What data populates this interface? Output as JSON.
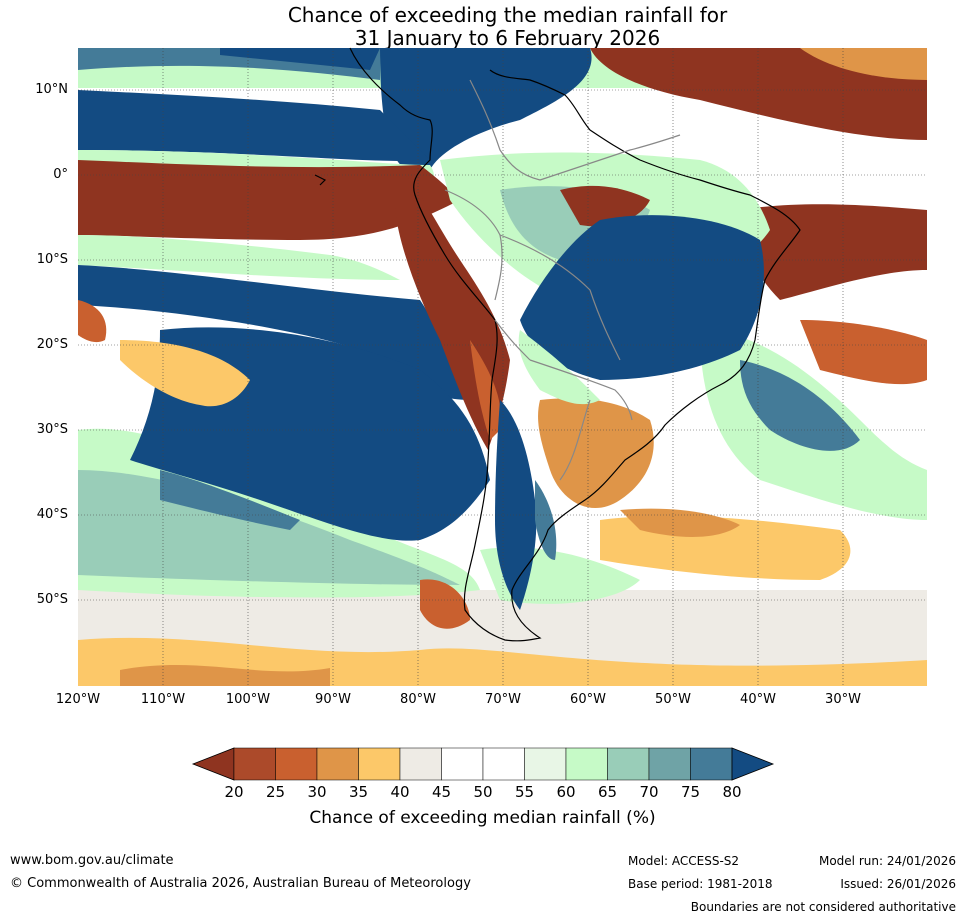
{
  "title": {
    "line1": "Chance of exceeding the median rainfall for",
    "line2": "31 January to 6 February 2026"
  },
  "map": {
    "lat_labels": [
      "10°N",
      "0°",
      "10°S",
      "20°S",
      "30°S",
      "40°S",
      "50°S"
    ],
    "lon_labels": [
      "120°W",
      "110°W",
      "100°W",
      "90°W",
      "80°W",
      "70°W",
      "60°W",
      "50°W",
      "40°W",
      "30°W"
    ],
    "colors": {
      "p20": "#8f3420",
      "p25": "#ac4a2a",
      "p30": "#c9602f",
      "p35": "#df9548",
      "p40": "#fcc869",
      "p45": "#eeebe5",
      "p50": "#ffffff",
      "p55": "#ffffff",
      "p60": "#e8f6e6",
      "p65": "#c6fac7",
      "p70": "#99cdb8",
      "p75": "#6fa3a6",
      "p80": "#447b98",
      "p85": "#134b82"
    }
  },
  "colorbar": {
    "ticks": [
      "20",
      "25",
      "30",
      "35",
      "40",
      "45",
      "50",
      "55",
      "60",
      "65",
      "70",
      "75",
      "80"
    ],
    "label": "Chance of exceeding median rainfall (%)"
  },
  "footer": {
    "website": "www.bom.gov.au/climate",
    "copyright": "© Commonwealth of Australia 2026, Australian Bureau of Meteorology",
    "model": "Model: ACCESS-S2",
    "base_period": "Base period: 1981-2018",
    "model_run": "Model run: 24/01/2026",
    "issued": "Issued: 26/01/2026",
    "disclaimer": "Boundaries are not considered authoritative"
  }
}
